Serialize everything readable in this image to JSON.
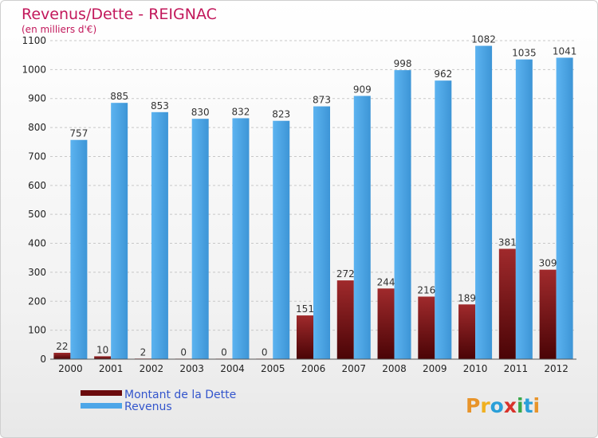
{
  "chart_data": {
    "type": "bar",
    "title": "Revenus/Dette - REIGNAC",
    "subtitle": "(en milliers d'€)",
    "categories": [
      "2000",
      "2001",
      "2002",
      "2003",
      "2004",
      "2005",
      "2006",
      "2007",
      "2008",
      "2009",
      "2010",
      "2011",
      "2012"
    ],
    "series": [
      {
        "name": "Montant de la Dette",
        "color": "#7a0e10",
        "values": [
          22,
          10,
          2,
          0,
          0,
          0,
          151,
          272,
          244,
          216,
          189,
          381,
          309
        ]
      },
      {
        "name": "Revenus",
        "color": "#4da6e8",
        "values": [
          757,
          885,
          853,
          830,
          832,
          823,
          873,
          909,
          998,
          962,
          1082,
          1035,
          1041
        ]
      }
    ],
    "ylim": [
      0,
      1100
    ],
    "yticks": [
      0,
      100,
      200,
      300,
      400,
      500,
      600,
      700,
      800,
      900,
      1000,
      1100
    ],
    "grid": true,
    "legend_position": "bottom-left",
    "logo_text": "Proxiti"
  }
}
